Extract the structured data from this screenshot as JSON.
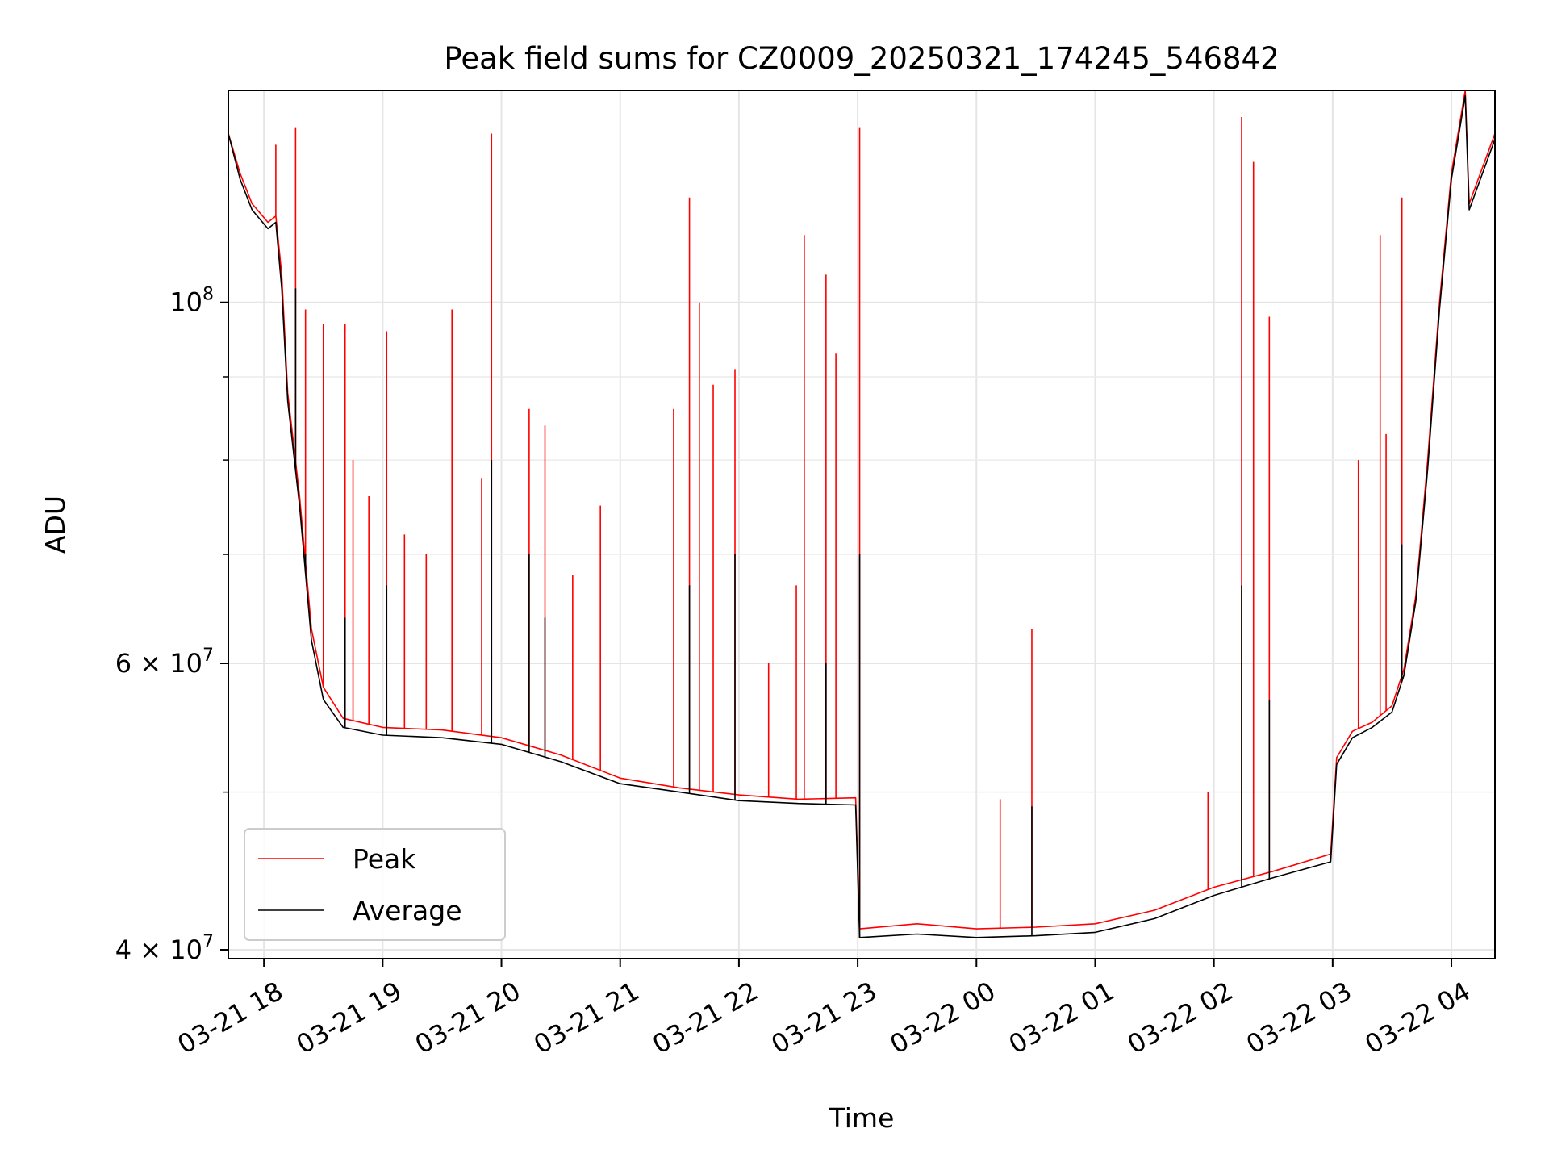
{
  "chart_data": {
    "type": "line",
    "title": "Peak field sums for CZ0009_20250321_174245_546842",
    "xlabel": "Time",
    "ylabel": "ADU",
    "yscale": "log",
    "grid": true,
    "legend_position": "lower-left",
    "xlim": [
      "2025-03-21 17:42",
      "2025-03-22 04:22"
    ],
    "ylim": [
      39500000,
      135000000
    ],
    "x_ticks": [
      {
        "t": "2025-03-21 18:00",
        "label": "03-21 18"
      },
      {
        "t": "2025-03-21 19:00",
        "label": "03-21 19"
      },
      {
        "t": "2025-03-21 20:00",
        "label": "03-21 20"
      },
      {
        "t": "2025-03-21 21:00",
        "label": "03-21 21"
      },
      {
        "t": "2025-03-21 22:00",
        "label": "03-21 22"
      },
      {
        "t": "2025-03-21 23:00",
        "label": "03-21 23"
      },
      {
        "t": "2025-03-22 00:00",
        "label": "03-22 00"
      },
      {
        "t": "2025-03-22 01:00",
        "label": "03-22 01"
      },
      {
        "t": "2025-03-22 02:00",
        "label": "03-22 02"
      },
      {
        "t": "2025-03-22 03:00",
        "label": "03-22 03"
      },
      {
        "t": "2025-03-22 04:00",
        "label": "03-22 04"
      }
    ],
    "y_major_ticks": [
      {
        "value": 40000000,
        "base": "4",
        "exp": "7"
      },
      {
        "value": 60000000,
        "base": "6",
        "exp": "7"
      },
      {
        "value": 100000000,
        "base": "",
        "exp": "8"
      }
    ],
    "y_minor_ticks": [
      50000000,
      70000000,
      80000000,
      90000000
    ],
    "series": [
      {
        "name": "Peak",
        "color": "#ff0000",
        "baseline": [
          [
            "2025-03-21 17:42",
            127000000
          ],
          [
            "2025-03-21 17:48",
            120000000
          ],
          [
            "2025-03-21 17:54",
            115000000
          ],
          [
            "2025-03-21 18:02",
            112000000
          ],
          [
            "2025-03-21 18:06",
            113000000
          ],
          [
            "2025-03-21 18:09",
            104000000
          ],
          [
            "2025-03-21 18:12",
            88000000
          ],
          [
            "2025-03-21 18:18",
            76000000
          ],
          [
            "2025-03-21 18:24",
            63000000
          ],
          [
            "2025-03-21 18:30",
            58000000
          ],
          [
            "2025-03-21 18:40",
            55500000
          ],
          [
            "2025-03-21 19:00",
            54800000
          ],
          [
            "2025-03-21 19:30",
            54600000
          ],
          [
            "2025-03-21 20:00",
            54000000
          ],
          [
            "2025-03-21 20:30",
            52700000
          ],
          [
            "2025-03-21 21:00",
            51000000
          ],
          [
            "2025-03-21 21:30",
            50300000
          ],
          [
            "2025-03-21 22:00",
            49800000
          ],
          [
            "2025-03-21 22:30",
            49500000
          ],
          [
            "2025-03-21 22:59",
            49600000
          ],
          [
            "2025-03-21 23:01",
            41200000
          ],
          [
            "2025-03-21 23:30",
            41500000
          ],
          [
            "2025-03-22 00:00",
            41200000
          ],
          [
            "2025-03-22 00:30",
            41300000
          ],
          [
            "2025-03-22 01:00",
            41500000
          ],
          [
            "2025-03-22 01:30",
            42300000
          ],
          [
            "2025-03-22 02:00",
            43700000
          ],
          [
            "2025-03-22 02:30",
            44700000
          ],
          [
            "2025-03-22 02:59",
            45800000
          ],
          [
            "2025-03-22 03:02",
            52500000
          ],
          [
            "2025-03-22 03:10",
            54500000
          ],
          [
            "2025-03-22 03:20",
            55200000
          ],
          [
            "2025-03-22 03:30",
            56500000
          ],
          [
            "2025-03-22 03:36",
            59500000
          ],
          [
            "2025-03-22 03:42",
            66000000
          ],
          [
            "2025-03-22 03:48",
            80000000
          ],
          [
            "2025-03-22 03:54",
            100000000
          ],
          [
            "2025-03-22 04:00",
            120000000
          ],
          [
            "2025-03-22 04:07",
            135000000
          ],
          [
            "2025-03-22 04:09",
            115000000
          ],
          [
            "2025-03-22 04:22",
            127000000
          ]
        ],
        "spikes": [
          [
            "2025-03-21 18:06",
            125000000
          ],
          [
            "2025-03-21 18:16",
            128000000
          ],
          [
            "2025-03-21 18:21",
            99000000
          ],
          [
            "2025-03-21 18:30",
            97000000
          ],
          [
            "2025-03-21 18:41",
            97000000
          ],
          [
            "2025-03-21 18:45",
            80000000
          ],
          [
            "2025-03-21 18:53",
            76000000
          ],
          [
            "2025-03-21 19:02",
            96000000
          ],
          [
            "2025-03-21 19:11",
            72000000
          ],
          [
            "2025-03-21 19:22",
            70000000
          ],
          [
            "2025-03-21 19:35",
            99000000
          ],
          [
            "2025-03-21 19:50",
            78000000
          ],
          [
            "2025-03-21 19:55",
            127000000
          ],
          [
            "2025-03-21 20:14",
            86000000
          ],
          [
            "2025-03-21 20:22",
            84000000
          ],
          [
            "2025-03-21 20:36",
            68000000
          ],
          [
            "2025-03-21 20:50",
            75000000
          ],
          [
            "2025-03-21 21:27",
            86000000
          ],
          [
            "2025-03-21 21:35",
            116000000
          ],
          [
            "2025-03-21 21:40",
            100000000
          ],
          [
            "2025-03-21 21:47",
            89000000
          ],
          [
            "2025-03-21 21:58",
            91000000
          ],
          [
            "2025-03-21 22:15",
            60000000
          ],
          [
            "2025-03-21 22:29",
            67000000
          ],
          [
            "2025-03-21 22:33",
            110000000
          ],
          [
            "2025-03-21 22:44",
            104000000
          ],
          [
            "2025-03-21 22:49",
            93000000
          ],
          [
            "2025-03-21 23:01",
            128000000
          ],
          [
            "2025-03-22 00:12",
            49500000
          ],
          [
            "2025-03-22 00:28",
            63000000
          ],
          [
            "2025-03-22 01:57",
            50000000
          ],
          [
            "2025-03-22 02:14",
            130000000
          ],
          [
            "2025-03-22 02:20",
            122000000
          ],
          [
            "2025-03-22 02:28",
            98000000
          ],
          [
            "2025-03-22 03:13",
            80000000
          ],
          [
            "2025-03-22 03:24",
            110000000
          ],
          [
            "2025-03-22 03:27",
            83000000
          ],
          [
            "2025-03-22 03:35",
            116000000
          ]
        ]
      },
      {
        "name": "Average",
        "color": "#000000",
        "baseline": [
          [
            "2025-03-21 17:42",
            127000000
          ],
          [
            "2025-03-21 17:48",
            119000000
          ],
          [
            "2025-03-21 17:54",
            114000000
          ],
          [
            "2025-03-21 18:02",
            111000000
          ],
          [
            "2025-03-21 18:06",
            112000000
          ],
          [
            "2025-03-21 18:09",
            102000000
          ],
          [
            "2025-03-21 18:12",
            87000000
          ],
          [
            "2025-03-21 18:18",
            75000000
          ],
          [
            "2025-03-21 18:24",
            62000000
          ],
          [
            "2025-03-21 18:30",
            57000000
          ],
          [
            "2025-03-21 18:40",
            54800000
          ],
          [
            "2025-03-21 19:00",
            54200000
          ],
          [
            "2025-03-21 19:30",
            54000000
          ],
          [
            "2025-03-21 20:00",
            53500000
          ],
          [
            "2025-03-21 20:30",
            52200000
          ],
          [
            "2025-03-21 21:00",
            50600000
          ],
          [
            "2025-03-21 21:30",
            50000000
          ],
          [
            "2025-03-21 22:00",
            49400000
          ],
          [
            "2025-03-21 22:30",
            49200000
          ],
          [
            "2025-03-21 22:59",
            49100000
          ],
          [
            "2025-03-21 23:01",
            40700000
          ],
          [
            "2025-03-21 23:30",
            40900000
          ],
          [
            "2025-03-22 00:00",
            40700000
          ],
          [
            "2025-03-22 00:30",
            40800000
          ],
          [
            "2025-03-22 01:00",
            41000000
          ],
          [
            "2025-03-22 01:30",
            41800000
          ],
          [
            "2025-03-22 02:00",
            43200000
          ],
          [
            "2025-03-22 02:30",
            44300000
          ],
          [
            "2025-03-22 02:59",
            45300000
          ],
          [
            "2025-03-22 03:02",
            52000000
          ],
          [
            "2025-03-22 03:10",
            54000000
          ],
          [
            "2025-03-22 03:20",
            54800000
          ],
          [
            "2025-03-22 03:30",
            56000000
          ],
          [
            "2025-03-22 03:36",
            59000000
          ],
          [
            "2025-03-22 03:42",
            65500000
          ],
          [
            "2025-03-22 03:48",
            79000000
          ],
          [
            "2025-03-22 03:54",
            99000000
          ],
          [
            "2025-03-22 04:00",
            119000000
          ],
          [
            "2025-03-22 04:07",
            134000000
          ],
          [
            "2025-03-22 04:09",
            114000000
          ],
          [
            "2025-03-22 04:22",
            126000000
          ]
        ],
        "spikes": [
          [
            "2025-03-21 18:16",
            102000000
          ],
          [
            "2025-03-21 18:21",
            70000000
          ],
          [
            "2025-03-21 18:41",
            64000000
          ],
          [
            "2025-03-21 19:02",
            67000000
          ],
          [
            "2025-03-21 19:55",
            80000000
          ],
          [
            "2025-03-21 20:14",
            70000000
          ],
          [
            "2025-03-21 20:22",
            64000000
          ],
          [
            "2025-03-21 21:35",
            67000000
          ],
          [
            "2025-03-21 21:58",
            70000000
          ],
          [
            "2025-03-21 22:44",
            60000000
          ],
          [
            "2025-03-21 23:01",
            70000000
          ],
          [
            "2025-03-22 00:28",
            49000000
          ],
          [
            "2025-03-22 02:14",
            67000000
          ],
          [
            "2025-03-22 02:28",
            57000000
          ],
          [
            "2025-03-22 03:35",
            71000000
          ]
        ]
      }
    ]
  }
}
